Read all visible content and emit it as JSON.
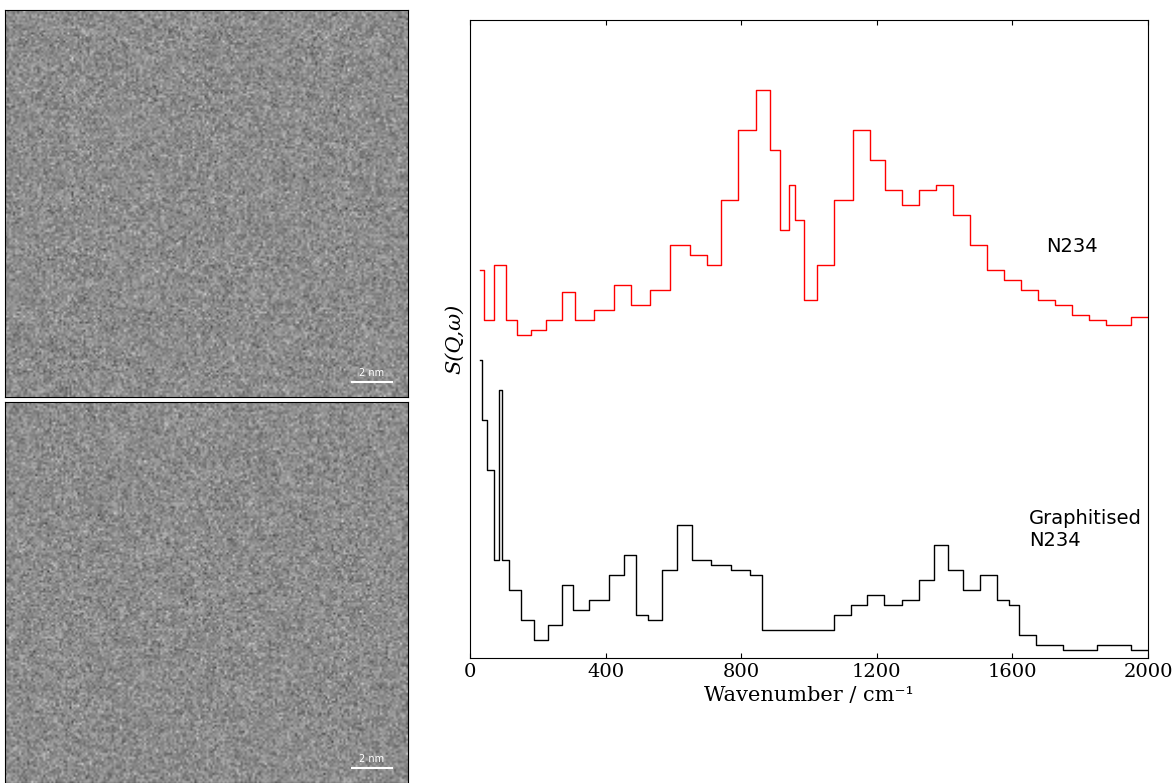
{
  "images": [
    {
      "scale_bar": "2 nm"
    },
    {
      "scale_bar": "2 nm"
    }
  ],
  "chart_data": {
    "type": "line",
    "xlabel": "Wavenumber / cm⁻¹",
    "ylabel": "S(Q,ω)",
    "xlim": [
      0,
      2000
    ],
    "xticks": [
      0,
      400,
      800,
      1200,
      1600,
      2000
    ],
    "ylim": [
      0,
      100
    ],
    "tick_labels": "x",
    "line_style": "steps",
    "series": [
      {
        "name": "N234",
        "color": "#ff0000",
        "x": [
          30,
          50,
          90,
          120,
          160,
          200,
          250,
          290,
          330,
          400,
          450,
          500,
          560,
          620,
          680,
          720,
          760,
          820,
          870,
          900,
          930,
          950,
          970,
          1000,
          1050,
          1100,
          1160,
          1200,
          1250,
          1300,
          1350,
          1400,
          1450,
          1500,
          1550,
          1600,
          1650,
          1700,
          1750,
          1800,
          1850,
          1900,
          2000
        ],
        "values": [
          60.8,
          53.0,
          61.6,
          53.0,
          50.6,
          51.4,
          53.0,
          57.4,
          53.0,
          54.5,
          58.5,
          55.3,
          57.7,
          64.7,
          63.2,
          61.6,
          71.8,
          82.8,
          89.0,
          79.6,
          67.1,
          74.1,
          68.7,
          56.1,
          61.6,
          71.8,
          82.8,
          78.1,
          73.4,
          71.0,
          73.4,
          74.1,
          69.4,
          64.7,
          60.8,
          59.2,
          57.7,
          56.1,
          55.3,
          53.7,
          53.0,
          52.2,
          53.4
        ]
      },
      {
        "name": "Graphitised\nN234",
        "color": "#000000",
        "x": [
          30,
          40,
          60,
          80,
          90,
          100,
          130,
          170,
          210,
          250,
          290,
          320,
          380,
          440,
          470,
          510,
          540,
          590,
          630,
          680,
          740,
          800,
          850,
          870,
          950,
          1050,
          1100,
          1150,
          1190,
          1250,
          1300,
          1350,
          1390,
          1430,
          1480,
          1530,
          1580,
          1600,
          1640,
          1700,
          1800,
          1900,
          2000
        ],
        "values": [
          46.7,
          37.3,
          29.5,
          15.4,
          42.0,
          15.4,
          10.7,
          6.0,
          2.8,
          5.2,
          11.4,
          7.5,
          9.1,
          13.0,
          16.1,
          6.7,
          5.9,
          13.8,
          20.8,
          15.4,
          14.6,
          13.8,
          13.0,
          4.4,
          4.4,
          4.4,
          6.7,
          8.3,
          9.9,
          8.3,
          9.1,
          12.2,
          17.7,
          13.8,
          10.7,
          13.0,
          9.1,
          8.3,
          3.6,
          2.0,
          1.3,
          2.0,
          1.3
        ]
      }
    ]
  }
}
